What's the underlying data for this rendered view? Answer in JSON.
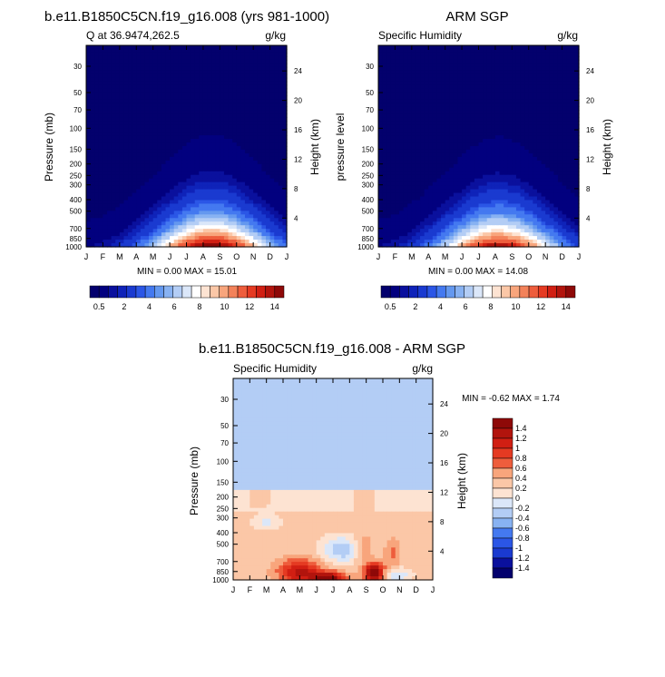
{
  "chart_data": [
    {
      "type": "heatmap",
      "id": "model",
      "title": "b.e11.B1850C5CN.f19_g16.008 (yrs 981-1000)",
      "left_label": "Q at 36.9474,262.5",
      "units": "g/kg",
      "ylabel": "Pressure (mb)",
      "ylabel_right": "Height (km)",
      "x_ticks": [
        "J",
        "F",
        "M",
        "A",
        "M",
        "J",
        "J",
        "A",
        "S",
        "O",
        "N",
        "D",
        "J"
      ],
      "y_ticks": [
        "30",
        "50",
        "70",
        "100",
        "150",
        "200",
        "250",
        "300",
        "400",
        "500",
        "700",
        "850",
        "1000"
      ],
      "height_ticks": [
        "24",
        "20",
        "16",
        "12",
        "8",
        "4"
      ],
      "stats": "MIN =   0.00 MAX =  15.01",
      "min": 0.0,
      "max": 15.01,
      "peak_month": 7.5,
      "colorbar_levels": [
        0.5,
        1,
        1.5,
        2,
        2.5,
        3,
        3.5,
        4,
        4.5,
        5,
        5.5,
        6,
        6.5,
        7,
        7.5,
        8,
        8.5,
        9,
        9.5,
        10,
        10.5,
        11,
        11.5,
        12,
        12.5,
        13,
        13.5,
        14
      ],
      "colorbar_labels": [
        "0.5",
        "2",
        "4",
        "6",
        "8",
        "10",
        "12",
        "14"
      ]
    },
    {
      "type": "heatmap",
      "id": "obs",
      "title": "ARM SGP",
      "left_label": "Specific Humidity",
      "units": "g/kg",
      "ylabel": "pressure level",
      "ylabel_right": "Height (km)",
      "x_ticks": [
        "J",
        "F",
        "M",
        "A",
        "M",
        "J",
        "J",
        "A",
        "S",
        "O",
        "N",
        "D",
        "J"
      ],
      "y_ticks": [
        "30",
        "50",
        "70",
        "100",
        "150",
        "200",
        "250",
        "300",
        "400",
        "500",
        "700",
        "850",
        "1000"
      ],
      "height_ticks": [
        "24",
        "20",
        "16",
        "12",
        "8",
        "4"
      ],
      "stats": "MIN =   0.00 MAX =  14.08",
      "min": 0.0,
      "max": 14.08,
      "peak_month": 7.2,
      "colorbar_levels": [
        0.5,
        1,
        1.5,
        2,
        2.5,
        3,
        3.5,
        4,
        4.5,
        5,
        5.5,
        6,
        6.5,
        7,
        7.5,
        8,
        8.5,
        9,
        9.5,
        10,
        10.5,
        11,
        11.5,
        12,
        12.5,
        13,
        13.5,
        14
      ],
      "colorbar_labels": [
        "0.5",
        "2",
        "4",
        "6",
        "8",
        "10",
        "12",
        "14"
      ]
    },
    {
      "type": "heatmap",
      "id": "diff",
      "title": "b.e11.B1850C5CN.f19_g16.008 - ARM SGP",
      "left_label": "Specific Humidity",
      "units": "g/kg",
      "ylabel": "Pressure (mb)",
      "ylabel_right": "Height (km)",
      "x_ticks": [
        "J",
        "F",
        "M",
        "A",
        "M",
        "J",
        "J",
        "A",
        "S",
        "O",
        "N",
        "D",
        "J"
      ],
      "y_ticks": [
        "30",
        "50",
        "70",
        "100",
        "150",
        "200",
        "250",
        "300",
        "400",
        "500",
        "700",
        "850",
        "1000"
      ],
      "height_ticks": [
        "24",
        "20",
        "16",
        "12",
        "8",
        "4"
      ],
      "stats": "MIN =  -0.62 MAX =   1.74",
      "min": -0.62,
      "max": 1.74,
      "colorbar_levels": [
        1.4,
        1.2,
        1,
        0.8,
        0.6,
        0.4,
        0.2,
        0,
        -0.2,
        -0.4,
        -0.6,
        -0.8,
        -1,
        -1.2,
        -1.4
      ],
      "colorbar_labels": [
        "1.4",
        "1.2",
        "1",
        "0.8",
        "0.6",
        "0.4",
        "0.2",
        "0",
        "-0.2",
        "-0.4",
        "-0.6",
        "-0.8",
        "-1",
        "-1.2",
        "-1.4"
      ]
    }
  ],
  "colors": {
    "seq": [
      "#03006d",
      "#02007f",
      "#0a109d",
      "#0f23b9",
      "#1a3ad0",
      "#2b56e6",
      "#4479f0",
      "#6498ef",
      "#88b2f2",
      "#b3cdf5",
      "#dbe7f9",
      "#ffffff",
      "#fde3d2",
      "#fbc7a7",
      "#f8a57c",
      "#f3825a",
      "#ee5d3c",
      "#e53a22",
      "#d11f13",
      "#b2140d",
      "#8e0908"
    ],
    "div": [
      "#03006d",
      "#0a109d",
      "#1a3ad0",
      "#2b56e6",
      "#4479f0",
      "#88b2f2",
      "#b3cdf5",
      "#dbe7f9",
      "#fde3d2",
      "#fbc7a7",
      "#f8a57c",
      "#ee5d3c",
      "#e53a22",
      "#d11f13",
      "#b2140d",
      "#8e0908"
    ]
  }
}
